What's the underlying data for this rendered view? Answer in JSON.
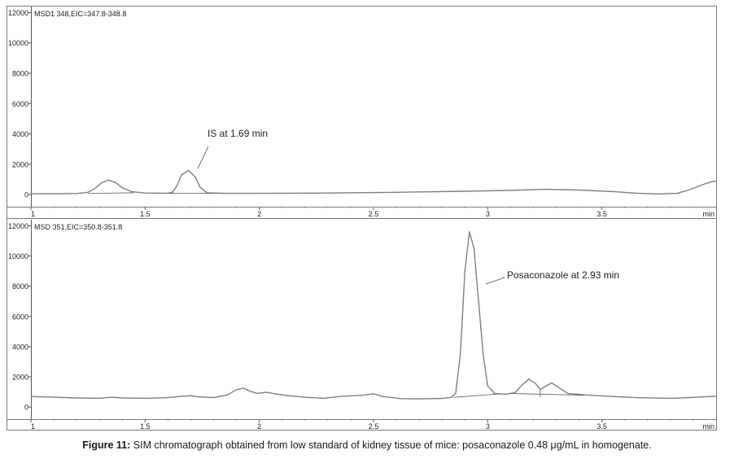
{
  "chart_data": [
    {
      "type": "line",
      "title": "MSD1 348,EIC=347.8-348.8",
      "xlabel": "min",
      "ylabel": "",
      "xlim": [
        1,
        4
      ],
      "ylim": [
        -800,
        12400
      ],
      "x_ticks": [
        "1",
        "1.5",
        "2",
        "2.5",
        "3",
        "3.5",
        "min"
      ],
      "y_ticks": [
        "0",
        "2000",
        "4000",
        "6000",
        "8000",
        "10000",
        "12000"
      ],
      "grid": false,
      "series": [
        {
          "values": [
            [
              1.0,
              50
            ],
            [
              1.1,
              60
            ],
            [
              1.2,
              70
            ],
            [
              1.25,
              150
            ],
            [
              1.28,
              400
            ],
            [
              1.31,
              780
            ],
            [
              1.34,
              950
            ],
            [
              1.37,
              800
            ],
            [
              1.4,
              450
            ],
            [
              1.44,
              200
            ],
            [
              1.5,
              100
            ],
            [
              1.6,
              90
            ],
            [
              1.62,
              150
            ],
            [
              1.64,
              600
            ],
            [
              1.66,
              1300
            ],
            [
              1.69,
              1600
            ],
            [
              1.72,
              1150
            ],
            [
              1.74,
              500
            ],
            [
              1.77,
              120
            ],
            [
              1.85,
              80
            ],
            [
              2.0,
              80
            ],
            [
              2.3,
              100
            ],
            [
              2.6,
              150
            ],
            [
              2.9,
              220
            ],
            [
              3.1,
              280
            ],
            [
              3.25,
              350
            ],
            [
              3.4,
              300
            ],
            [
              3.55,
              200
            ],
            [
              3.65,
              90
            ],
            [
              3.75,
              40
            ],
            [
              3.83,
              80
            ],
            [
              3.88,
              300
            ],
            [
              3.94,
              650
            ],
            [
              3.98,
              850
            ],
            [
              4.0,
              880
            ]
          ]
        }
      ],
      "annotations": [
        {
          "text": "IS at 1.69 min",
          "x": 1.69,
          "y": 1600
        }
      ]
    },
    {
      "type": "line",
      "title": "MSD 351,EIC=350.8-351.8",
      "xlabel": "min",
      "ylabel": "",
      "xlim": [
        1,
        4
      ],
      "ylim": [
        -800,
        12400
      ],
      "x_ticks": [
        "1",
        "1.5",
        "2",
        "2.5",
        "3",
        "3.5",
        "min"
      ],
      "y_ticks": [
        "0",
        "2000",
        "4000",
        "6000",
        "8000",
        "10000",
        "12000"
      ],
      "grid": false,
      "series": [
        {
          "values": [
            [
              1.0,
              700
            ],
            [
              1.1,
              650
            ],
            [
              1.2,
              600
            ],
            [
              1.3,
              580
            ],
            [
              1.35,
              650
            ],
            [
              1.4,
              600
            ],
            [
              1.5,
              580
            ],
            [
              1.6,
              620
            ],
            [
              1.65,
              700
            ],
            [
              1.7,
              750
            ],
            [
              1.73,
              680
            ],
            [
              1.8,
              620
            ],
            [
              1.86,
              800
            ],
            [
              1.9,
              1150
            ],
            [
              1.93,
              1250
            ],
            [
              1.96,
              1050
            ],
            [
              1.99,
              900
            ],
            [
              2.03,
              980
            ],
            [
              2.06,
              900
            ],
            [
              2.12,
              760
            ],
            [
              2.2,
              650
            ],
            [
              2.28,
              580
            ],
            [
              2.35,
              700
            ],
            [
              2.45,
              780
            ],
            [
              2.5,
              880
            ],
            [
              2.54,
              700
            ],
            [
              2.62,
              560
            ],
            [
              2.7,
              540
            ],
            [
              2.8,
              570
            ],
            [
              2.84,
              640
            ],
            [
              2.86,
              900
            ],
            [
              2.88,
              3500
            ],
            [
              2.9,
              9000
            ],
            [
              2.92,
              11600
            ],
            [
              2.94,
              10500
            ],
            [
              2.96,
              7000
            ],
            [
              2.98,
              3500
            ],
            [
              3.0,
              1400
            ],
            [
              3.03,
              900
            ],
            [
              3.08,
              850
            ],
            [
              3.12,
              950
            ],
            [
              3.15,
              1450
            ],
            [
              3.18,
              1850
            ],
            [
              3.21,
              1550
            ],
            [
              3.23,
              1150
            ],
            [
              3.25,
              1350
            ],
            [
              3.28,
              1600
            ],
            [
              3.31,
              1300
            ],
            [
              3.35,
              900
            ],
            [
              3.45,
              780
            ],
            [
              3.55,
              700
            ],
            [
              3.65,
              620
            ],
            [
              3.8,
              580
            ],
            [
              3.9,
              640
            ],
            [
              4.0,
              720
            ]
          ]
        }
      ],
      "annotations": [
        {
          "text": "Posaconazole at 2.93 min",
          "x": 2.93,
          "y": 11600
        }
      ]
    }
  ],
  "caption": {
    "label": "Figure 11:",
    "text": " SIM chromatograph obtained from low standard of kidney tissue of mice: posaconazole 0.48 μg/mL in homogenate."
  }
}
